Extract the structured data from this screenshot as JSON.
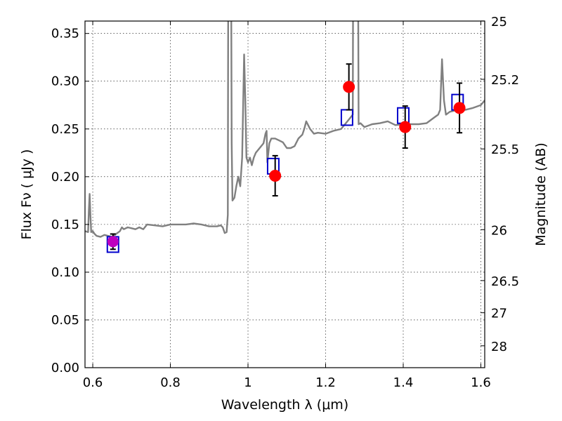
{
  "chart_data": {
    "type": "scatter",
    "xlabel": "Wavelength  λ (μm)",
    "ylabel": "Flux  Fν  ( μJy )",
    "y2label": "Magnitude (AB)",
    "xlim": [
      0.58,
      1.61
    ],
    "ylim": [
      0.0,
      0.363
    ],
    "grid": true,
    "x_ticks": [
      0.6,
      0.8,
      1.0,
      1.2,
      1.4,
      1.6
    ],
    "x_tick_labels": [
      "0.6",
      "0.8",
      "1",
      "1.2",
      "1.4",
      "1.6"
    ],
    "y_ticks": [
      0.0,
      0.05,
      0.1,
      0.15,
      0.2,
      0.25,
      0.3,
      0.35
    ],
    "y_tick_labels": [
      "0.00",
      "0.05",
      "0.10",
      "0.15",
      "0.20",
      "0.25",
      "0.30",
      "0.35"
    ],
    "y2_ticks": [
      25,
      25.2,
      25.5,
      26,
      26.5,
      27,
      28
    ],
    "y2_tick_labels": [
      "25",
      "25.2",
      "25.5",
      "26",
      "26.5",
      "27",
      "28"
    ],
    "colors": {
      "model": "#808080",
      "observed": "#ff0000",
      "synthetic": "#0000cc",
      "magenta_point": "#bf00bf",
      "errorbar": "#000000"
    },
    "model_spectrum": {
      "x": [
        0.58,
        0.588,
        0.59,
        0.592,
        0.594,
        0.596,
        0.6,
        0.605,
        0.61,
        0.62,
        0.63,
        0.64,
        0.65,
        0.66,
        0.67,
        0.675,
        0.68,
        0.69,
        0.7,
        0.71,
        0.72,
        0.73,
        0.74,
        0.76,
        0.78,
        0.8,
        0.82,
        0.84,
        0.86,
        0.88,
        0.9,
        0.92,
        0.93,
        0.935,
        0.94,
        0.945,
        0.948,
        0.95,
        0.952,
        0.955,
        0.958,
        0.96,
        0.965,
        0.97,
        0.975,
        0.98,
        0.985,
        0.99,
        0.993,
        0.996,
        1.0,
        1.005,
        1.01,
        1.015,
        1.02,
        1.03,
        1.04,
        1.045,
        1.048,
        1.05,
        1.055,
        1.06,
        1.07,
        1.08,
        1.09,
        1.1,
        1.11,
        1.12,
        1.13,
        1.14,
        1.145,
        1.15,
        1.16,
        1.17,
        1.18,
        1.2,
        1.22,
        1.24,
        1.26,
        1.27,
        1.272,
        1.275,
        1.278,
        1.282,
        1.285,
        1.29,
        1.3,
        1.32,
        1.34,
        1.36,
        1.38,
        1.4,
        1.42,
        1.44,
        1.46,
        1.48,
        1.49,
        1.495,
        1.5,
        1.505,
        1.51,
        1.52,
        1.54,
        1.56,
        1.58,
        1.6,
        1.61
      ],
      "y": [
        0.143,
        0.142,
        0.165,
        0.182,
        0.16,
        0.142,
        0.143,
        0.14,
        0.138,
        0.137,
        0.139,
        0.138,
        0.137,
        0.14,
        0.143,
        0.147,
        0.145,
        0.147,
        0.146,
        0.145,
        0.147,
        0.145,
        0.15,
        0.149,
        0.148,
        0.15,
        0.15,
        0.15,
        0.151,
        0.15,
        0.148,
        0.148,
        0.149,
        0.147,
        0.141,
        0.142,
        0.16,
        0.6,
        0.6,
        0.6,
        0.235,
        0.175,
        0.178,
        0.19,
        0.2,
        0.19,
        0.22,
        0.328,
        0.28,
        0.22,
        0.215,
        0.22,
        0.212,
        0.22,
        0.225,
        0.23,
        0.235,
        0.245,
        0.248,
        0.215,
        0.235,
        0.24,
        0.24,
        0.238,
        0.236,
        0.23,
        0.23,
        0.232,
        0.24,
        0.244,
        0.25,
        0.258,
        0.25,
        0.245,
        0.246,
        0.245,
        0.248,
        0.25,
        0.26,
        0.265,
        0.6,
        0.6,
        0.6,
        0.6,
        0.255,
        0.256,
        0.252,
        0.255,
        0.256,
        0.258,
        0.254,
        0.255,
        0.255,
        0.255,
        0.256,
        0.262,
        0.265,
        0.27,
        0.323,
        0.28,
        0.265,
        0.268,
        0.27,
        0.27,
        0.272,
        0.275,
        0.28
      ]
    },
    "observed": {
      "x": [
        1.07,
        1.26,
        1.405,
        1.545
      ],
      "y": [
        0.201,
        0.294,
        0.252,
        0.272
      ],
      "yerr": [
        0.021,
        0.024,
        0.022,
        0.026
      ]
    },
    "synthetic": {
      "x": [
        0.652,
        1.065,
        1.255,
        1.4,
        1.54
      ],
      "y": [
        0.129,
        0.211,
        0.262,
        0.264,
        0.278
      ]
    },
    "magenta_point": {
      "x": 0.652,
      "y": 0.132,
      "yerr": 0.008
    }
  }
}
